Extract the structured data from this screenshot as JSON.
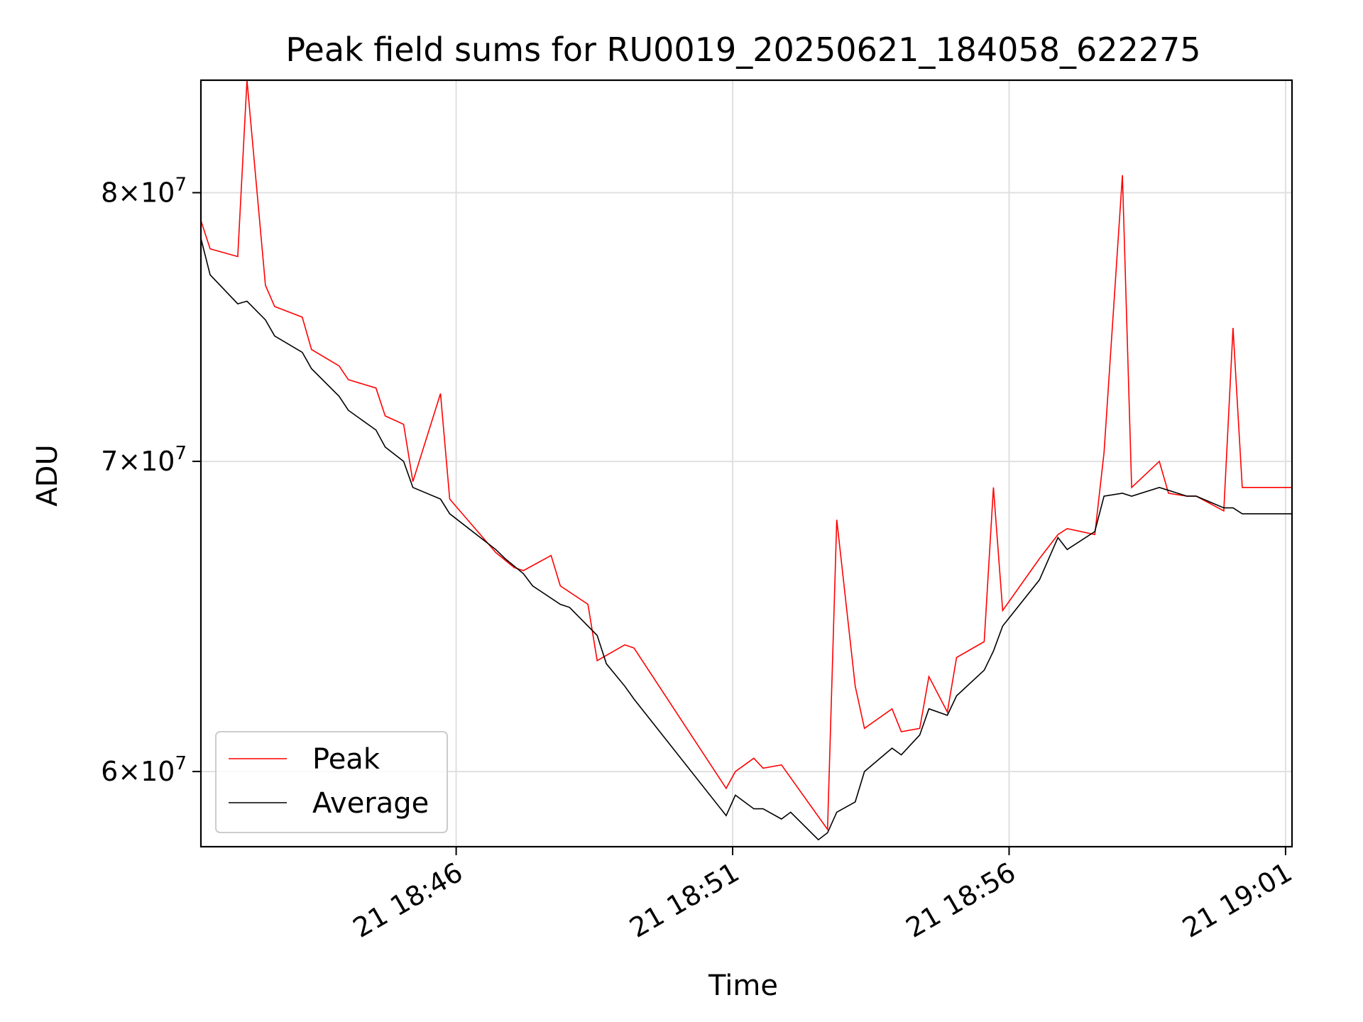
{
  "chart_data": {
    "type": "line",
    "title": "Peak field sums for RU0019_20250621_184058_622275",
    "xlabel": "Time",
    "ylabel": "ADU",
    "yscale": "log",
    "ylim": [
      57800000,
      84600000
    ],
    "xlim": [
      "2025-06-21 18:41:23",
      "2025-06-21 19:01:07"
    ],
    "xticks": [
      {
        "t": "2025-06-21 18:46:00",
        "label": "21 18:46"
      },
      {
        "t": "2025-06-21 18:51:00",
        "label": "21 18:51"
      },
      {
        "t": "2025-06-21 18:56:00",
        "label": "21 18:56"
      },
      {
        "t": "2025-06-21 19:01:00",
        "label": "21 19:01"
      }
    ],
    "yticks": [
      {
        "v": 80000000,
        "mant": "8",
        "base": "10",
        "exp": "7"
      },
      {
        "v": 70000000,
        "mant": "7",
        "base": "10",
        "exp": "7"
      },
      {
        "v": 60000000,
        "mant": "6",
        "base": "10",
        "exp": "7"
      }
    ],
    "grid": true,
    "legend_position": "lower-left",
    "series": [
      {
        "name": "Peak",
        "color": "#ff0000",
        "points": [
          [
            "2025-06-21 18:41:23",
            78900000
          ],
          [
            "2025-06-21 18:41:33",
            77800000
          ],
          [
            "2025-06-21 18:42:03",
            77500000
          ],
          [
            "2025-06-21 18:42:13",
            84600000
          ],
          [
            "2025-06-21 18:42:33",
            76400000
          ],
          [
            "2025-06-21 18:42:43",
            75600000
          ],
          [
            "2025-06-21 18:43:13",
            75200000
          ],
          [
            "2025-06-21 18:43:23",
            74000000
          ],
          [
            "2025-06-21 18:43:53",
            73400000
          ],
          [
            "2025-06-21 18:44:03",
            72900000
          ],
          [
            "2025-06-21 18:44:33",
            72600000
          ],
          [
            "2025-06-21 18:44:43",
            71600000
          ],
          [
            "2025-06-21 18:45:03",
            71300000
          ],
          [
            "2025-06-21 18:45:13",
            69300000
          ],
          [
            "2025-06-21 18:45:43",
            72400000
          ],
          [
            "2025-06-21 18:45:53",
            68700000
          ],
          [
            "2025-06-21 18:46:43",
            66900000
          ],
          [
            "2025-06-21 18:47:03",
            66400000
          ],
          [
            "2025-06-21 18:47:13",
            66300000
          ],
          [
            "2025-06-21 18:47:43",
            66800000
          ],
          [
            "2025-06-21 18:47:53",
            65800000
          ],
          [
            "2025-06-21 18:48:23",
            65200000
          ],
          [
            "2025-06-21 18:48:33",
            63400000
          ],
          [
            "2025-06-21 18:49:03",
            63900000
          ],
          [
            "2025-06-21 18:49:13",
            63800000
          ],
          [
            "2025-06-21 18:50:53",
            59500000
          ],
          [
            "2025-06-21 18:51:03",
            60000000
          ],
          [
            "2025-06-21 18:51:23",
            60400000
          ],
          [
            "2025-06-21 18:51:33",
            60100000
          ],
          [
            "2025-06-21 18:51:53",
            60200000
          ],
          [
            "2025-06-21 18:52:43",
            58300000
          ],
          [
            "2025-06-21 18:52:53",
            68000000
          ],
          [
            "2025-06-21 18:53:13",
            62600000
          ],
          [
            "2025-06-21 18:53:23",
            61300000
          ],
          [
            "2025-06-21 18:53:53",
            61900000
          ],
          [
            "2025-06-21 18:54:03",
            61200000
          ],
          [
            "2025-06-21 18:54:23",
            61300000
          ],
          [
            "2025-06-21 18:54:33",
            62900000
          ],
          [
            "2025-06-21 18:54:53",
            61800000
          ],
          [
            "2025-06-21 18:55:03",
            63500000
          ],
          [
            "2025-06-21 18:55:33",
            64000000
          ],
          [
            "2025-06-21 18:55:43",
            69100000
          ],
          [
            "2025-06-21 18:55:53",
            65000000
          ],
          [
            "2025-06-21 18:56:33",
            66700000
          ],
          [
            "2025-06-21 18:56:53",
            67500000
          ],
          [
            "2025-06-21 18:57:03",
            67700000
          ],
          [
            "2025-06-21 18:57:33",
            67500000
          ],
          [
            "2025-06-21 18:57:43",
            70300000
          ],
          [
            "2025-06-21 18:58:03",
            80700000
          ],
          [
            "2025-06-21 18:58:13",
            69100000
          ],
          [
            "2025-06-21 18:58:43",
            70000000
          ],
          [
            "2025-06-21 18:58:53",
            68900000
          ],
          [
            "2025-06-21 18:59:13",
            68800000
          ],
          [
            "2025-06-21 18:59:23",
            68800000
          ],
          [
            "2025-06-21 18:59:53",
            68300000
          ],
          [
            "2025-06-21 19:00:03",
            74800000
          ],
          [
            "2025-06-21 19:00:13",
            69100000
          ],
          [
            "2025-06-21 19:01:07",
            69100000
          ]
        ]
      },
      {
        "name": "Average",
        "color": "#000000",
        "points": [
          [
            "2025-06-21 18:41:23",
            78200000
          ],
          [
            "2025-06-21 18:41:33",
            76800000
          ],
          [
            "2025-06-21 18:42:03",
            75700000
          ],
          [
            "2025-06-21 18:42:13",
            75800000
          ],
          [
            "2025-06-21 18:42:33",
            75100000
          ],
          [
            "2025-06-21 18:42:43",
            74500000
          ],
          [
            "2025-06-21 18:43:13",
            73900000
          ],
          [
            "2025-06-21 18:43:23",
            73300000
          ],
          [
            "2025-06-21 18:43:53",
            72300000
          ],
          [
            "2025-06-21 18:44:03",
            71800000
          ],
          [
            "2025-06-21 18:44:33",
            71100000
          ],
          [
            "2025-06-21 18:44:43",
            70500000
          ],
          [
            "2025-06-21 18:45:03",
            70000000
          ],
          [
            "2025-06-21 18:45:13",
            69100000
          ],
          [
            "2025-06-21 18:45:43",
            68700000
          ],
          [
            "2025-06-21 18:45:53",
            68200000
          ],
          [
            "2025-06-21 18:46:43",
            67000000
          ],
          [
            "2025-06-21 18:46:53",
            66700000
          ],
          [
            "2025-06-21 18:47:13",
            66200000
          ],
          [
            "2025-06-21 18:47:23",
            65800000
          ],
          [
            "2025-06-21 18:47:53",
            65200000
          ],
          [
            "2025-06-21 18:48:03",
            65100000
          ],
          [
            "2025-06-21 18:48:33",
            64200000
          ],
          [
            "2025-06-21 18:48:43",
            63300000
          ],
          [
            "2025-06-21 18:49:03",
            62600000
          ],
          [
            "2025-06-21 18:49:13",
            62200000
          ],
          [
            "2025-06-21 18:50:53",
            58700000
          ],
          [
            "2025-06-21 18:51:03",
            59300000
          ],
          [
            "2025-06-21 18:51:23",
            58900000
          ],
          [
            "2025-06-21 18:51:33",
            58900000
          ],
          [
            "2025-06-21 18:51:53",
            58600000
          ],
          [
            "2025-06-21 18:52:03",
            58800000
          ],
          [
            "2025-06-21 18:52:33",
            58000000
          ],
          [
            "2025-06-21 18:52:43",
            58200000
          ],
          [
            "2025-06-21 18:52:53",
            58800000
          ],
          [
            "2025-06-21 18:53:13",
            59100000
          ],
          [
            "2025-06-21 18:53:23",
            60000000
          ],
          [
            "2025-06-21 18:53:53",
            60700000
          ],
          [
            "2025-06-21 18:54:03",
            60500000
          ],
          [
            "2025-06-21 18:54:23",
            61100000
          ],
          [
            "2025-06-21 18:54:33",
            61900000
          ],
          [
            "2025-06-21 18:54:53",
            61700000
          ],
          [
            "2025-06-21 18:55:03",
            62300000
          ],
          [
            "2025-06-21 18:55:33",
            63100000
          ],
          [
            "2025-06-21 18:55:43",
            63700000
          ],
          [
            "2025-06-21 18:55:53",
            64500000
          ],
          [
            "2025-06-21 18:56:33",
            66000000
          ],
          [
            "2025-06-21 18:56:53",
            67400000
          ],
          [
            "2025-06-21 18:57:03",
            67000000
          ],
          [
            "2025-06-21 18:57:33",
            67600000
          ],
          [
            "2025-06-21 18:57:43",
            68800000
          ],
          [
            "2025-06-21 18:58:03",
            68900000
          ],
          [
            "2025-06-21 18:58:13",
            68800000
          ],
          [
            "2025-06-21 18:58:43",
            69100000
          ],
          [
            "2025-06-21 18:59:13",
            68800000
          ],
          [
            "2025-06-21 18:59:23",
            68800000
          ],
          [
            "2025-06-21 18:59:53",
            68400000
          ],
          [
            "2025-06-21 19:00:03",
            68400000
          ],
          [
            "2025-06-21 19:00:13",
            68200000
          ],
          [
            "2025-06-21 19:01:07",
            68200000
          ]
        ]
      }
    ]
  }
}
